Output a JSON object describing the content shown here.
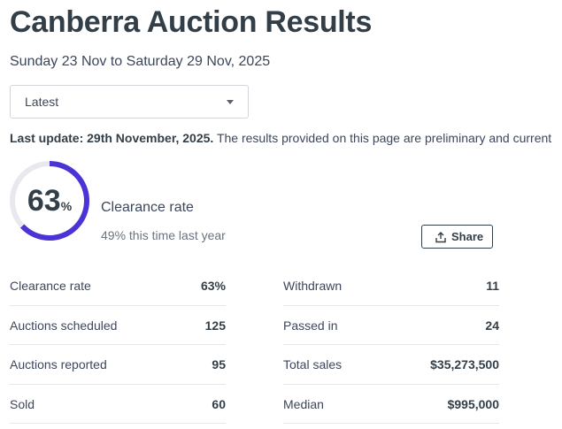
{
  "page": {
    "title": "Canberra Auction Results",
    "date_range": "Sunday 23 Nov to Saturday 29 Nov, 2025"
  },
  "filter": {
    "selected": "Latest"
  },
  "update": {
    "label": "Last update: 29th November, 2025.",
    "note": "The results provided on this page are preliminary and current"
  },
  "clearance": {
    "value": 63,
    "value_text": "63",
    "unit": "%",
    "label": "Clearance rate",
    "last_year": "49% this time last year",
    "ring_color": "#4a34d6",
    "track_color": "#e7e9ee"
  },
  "share": {
    "label": "Share",
    "icon": "share-icon"
  },
  "stats_left": [
    {
      "label": "Clearance rate",
      "value": "63%"
    },
    {
      "label": "Auctions scheduled",
      "value": "125"
    },
    {
      "label": "Auctions reported",
      "value": "95"
    },
    {
      "label": "Sold",
      "value": "60"
    }
  ],
  "stats_right": [
    {
      "label": "Withdrawn",
      "value": "11"
    },
    {
      "label": "Passed in",
      "value": "24"
    },
    {
      "label": "Total sales",
      "value": "$35,273,500"
    },
    {
      "label": "Median",
      "value": "$995,000"
    }
  ]
}
